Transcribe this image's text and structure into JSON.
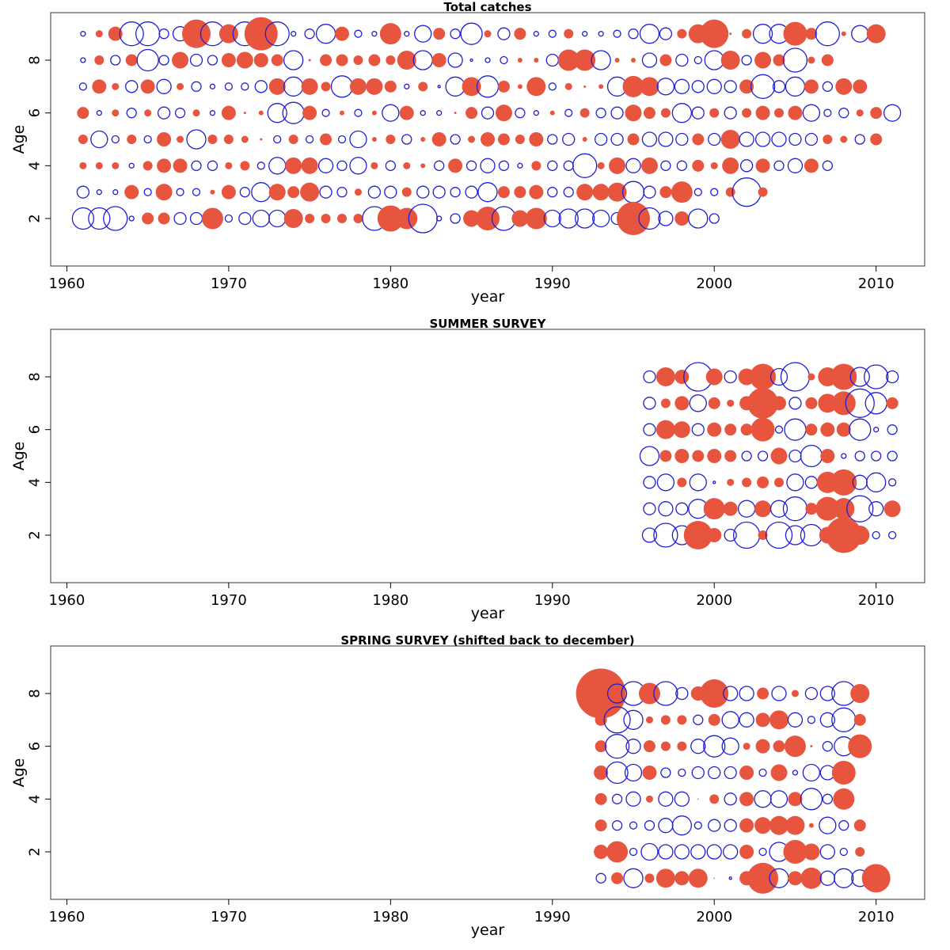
{
  "colors": {
    "positive": "#e8553f",
    "negative": "#1f1fd6",
    "axis": "#000000",
    "frame": "#333333"
  },
  "chart_data": [
    {
      "type": "scatter",
      "subtype": "bubble",
      "title": "Total catches",
      "xlabel": "year",
      "ylabel": "Age",
      "xlim": [
        1959,
        2013
      ],
      "ylim": [
        0.2,
        9.8
      ],
      "xticks": [
        1960,
        1970,
        1980,
        1990,
        2000,
        2010
      ],
      "yticks": [
        2,
        4,
        6,
        8
      ],
      "x_start": 1961,
      "ages": [
        9,
        8,
        7,
        6,
        5,
        4,
        3,
        2
      ],
      "encoding": "signed residual; + filled red, - open blue; radius ~ |value|",
      "values": [
        [
          -0.2,
          0.3,
          0.6,
          -1.0,
          -1.0,
          -0.4,
          -0.6,
          1.2,
          -1.0,
          0.8,
          -1.0,
          1.4,
          -1.0,
          -0.2,
          -0.4,
          -0.8,
          0.6,
          -0.3,
          -0.2,
          0.9,
          -0.2,
          -0.7,
          0.5,
          -0.4,
          -0.9,
          0.3,
          -0.5,
          0.5,
          -0.2,
          -0.3,
          0.4,
          -0.2,
          -0.2,
          -0.3,
          -0.4,
          -0.8,
          -0.5,
          0.4,
          0.8,
          1.2,
          0.1,
          0.4,
          -0.8,
          -0.8,
          1.0,
          0.5,
          -1.0,
          0.2,
          -0.7,
          0.8
        ],
        [
          -0.2,
          0.4,
          -0.4,
          0.5,
          -0.9,
          -0.4,
          0.7,
          -0.5,
          -0.4,
          0.6,
          0.7,
          0.6,
          0.5,
          -0.8,
          0.1,
          0.5,
          0.5,
          0.4,
          0.5,
          0.4,
          0.8,
          -0.8,
          0.6,
          -0.6,
          -0.1,
          -0.2,
          -0.3,
          0.2,
          0.2,
          -0.5,
          0.9,
          0.9,
          -0.8,
          0.2,
          0.2,
          -0.6,
          0.5,
          -0.5,
          -0.3,
          -0.8,
          0.8,
          -0.4,
          0.7,
          0.5,
          -1.0,
          0.3,
          0.5
        ],
        [
          -0.3,
          0.6,
          0.3,
          -0.5,
          0.6,
          -0.6,
          0.3,
          -0.4,
          -0.2,
          -0.3,
          -0.3,
          -0.5,
          0.7,
          -0.8,
          0.7,
          0.4,
          -0.9,
          0.7,
          0.7,
          0.5,
          -0.2,
          0.4,
          -0.1,
          -0.8,
          0.8,
          -0.9,
          0.5,
          0.2,
          0.8,
          -0.3,
          0.3,
          0.1,
          0.2,
          -0.8,
          0.9,
          0.8,
          -0.7,
          -0.6,
          -0.5,
          -0.6,
          -0.5,
          0.6,
          -1.0,
          -0.5,
          -0.8,
          0.6,
          -0.4,
          0.7,
          0.6
        ],
        [
          0.5,
          -0.2,
          0.3,
          -0.4,
          0.3,
          -0.5,
          -0.4,
          0.3,
          -0.2,
          0.6,
          0.1,
          0.2,
          -0.8,
          -0.9,
          0.6,
          -0.3,
          0.2,
          -0.3,
          0.2,
          -0.7,
          0.6,
          -0.2,
          -0.2,
          0.1,
          0.5,
          -0.5,
          0.7,
          -0.4,
          -0.2,
          0.2,
          -0.3,
          0.4,
          -0.4,
          -0.5,
          0.7,
          0.5,
          0.4,
          -0.8,
          -0.5,
          0.4,
          -0.5,
          0.4,
          0.6,
          0.4,
          0.6,
          -0.7,
          -0.3,
          -0.4,
          0.3,
          0.5,
          -0.7
        ],
        [
          0.4,
          -0.7,
          -0.3,
          0.4,
          -0.3,
          0.6,
          0.3,
          -0.8,
          0.4,
          0.4,
          0.3,
          0.1,
          -0.3,
          0.4,
          -0.3,
          0.5,
          -0.3,
          -0.7,
          0.2,
          0.4,
          -0.4,
          0.2,
          0.6,
          -0.4,
          0.3,
          0.6,
          0.5,
          0.4,
          0.6,
          -0.4,
          -0.5,
          0.2,
          -0.5,
          -0.5,
          0.5,
          -0.6,
          -0.6,
          -0.5,
          0.5,
          -0.5,
          0.8,
          -0.6,
          -0.6,
          -0.6,
          -0.5,
          -0.5,
          0.4,
          0.3,
          -0.4,
          0.5
        ],
        [
          0.3,
          0.3,
          0.3,
          -0.2,
          0.4,
          0.6,
          0.6,
          -0.4,
          -0.4,
          0.3,
          0.4,
          -0.3,
          -0.7,
          0.7,
          0.7,
          -0.6,
          -0.4,
          -0.7,
          0.3,
          -0.4,
          0.3,
          0.2,
          -0.4,
          0.6,
          -0.4,
          -0.6,
          -0.4,
          -0.2,
          0.4,
          -0.4,
          -0.4,
          -1.0,
          0.3,
          0.7,
          -0.6,
          0.7,
          -0.4,
          -0.4,
          0.5,
          0.3,
          0.7,
          -0.5,
          0.6,
          -0.4,
          -0.6,
          0.6,
          -0.4
        ],
        [
          -0.5,
          -0.2,
          -0.2,
          0.6,
          -0.3,
          0.7,
          -0.3,
          -0.3,
          0.2,
          0.6,
          -0.4,
          -0.8,
          0.7,
          0.5,
          0.8,
          -0.5,
          -0.4,
          0.3,
          -0.5,
          -0.5,
          0.4,
          -0.5,
          -0.5,
          -0.4,
          -0.5,
          -0.8,
          0.5,
          0.5,
          0.6,
          -0.4,
          -0.4,
          0.7,
          0.7,
          0.8,
          -0.9,
          -0.5,
          0.5,
          0.9,
          -0.3,
          -0.3,
          0.4,
          -1.2,
          0.4
        ],
        [
          -0.9,
          -0.9,
          -1.0,
          -0.2,
          0.5,
          0.5,
          -0.5,
          -0.5,
          0.9,
          -0.3,
          -0.5,
          -0.7,
          -0.7,
          0.8,
          0.4,
          0.4,
          0.4,
          0.4,
          -1.0,
          1.1,
          0.9,
          -1.2,
          -0.2,
          -0.4,
          0.7,
          1.0,
          -1.0,
          0.7,
          0.9,
          -0.7,
          -0.8,
          -0.8,
          -0.7,
          -0.5,
          1.4,
          -0.9,
          -0.6,
          0.6,
          -0.8,
          -0.4
        ]
      ]
    },
    {
      "type": "scatter",
      "subtype": "bubble",
      "title": "SUMMER SURVEY",
      "xlabel": "year",
      "ylabel": "Age",
      "xlim": [
        1959,
        2013
      ],
      "ylim": [
        0.2,
        9.8
      ],
      "xticks": [
        1960,
        1970,
        1980,
        1990,
        2000,
        2010
      ],
      "yticks": [
        2,
        4,
        6,
        8
      ],
      "x_start": 1996,
      "ages": [
        8,
        7,
        6,
        5,
        4,
        3,
        2
      ],
      "encoding": "signed residual; + filled red, - open blue; radius ~ |value|",
      "values": [
        [
          -0.5,
          0.8,
          0.6,
          -1.2,
          0.7,
          -0.5,
          0.7,
          1.1,
          -0.7,
          -1.2,
          0.3,
          0.8,
          1.1,
          -0.8,
          -1.0,
          -0.5
        ],
        [
          -0.5,
          0.4,
          0.6,
          -0.7,
          0.5,
          0.3,
          0.6,
          1.3,
          0.6,
          -0.5,
          0.5,
          0.8,
          1.0,
          -1.2,
          -0.9,
          0.5
        ],
        [
          -0.5,
          0.8,
          0.7,
          -0.5,
          0.6,
          0.5,
          0.5,
          1.0,
          -0.3,
          -0.9,
          0.5,
          0.6,
          0.6,
          -0.9,
          -0.2,
          -0.4
        ],
        [
          -0.8,
          0.5,
          0.6,
          0.5,
          0.6,
          0.5,
          -0.4,
          -0.4,
          0.7,
          -0.5,
          -0.9,
          0.6,
          -0.2,
          -0.4,
          -0.4,
          -0.4
        ],
        [
          -0.5,
          -0.7,
          0.4,
          -0.7,
          -0.1,
          0.3,
          0.4,
          0.5,
          0.4,
          -0.7,
          -0.5,
          0.9,
          1.1,
          -0.6,
          -0.8,
          -0.3
        ],
        [
          -0.5,
          -0.6,
          -0.5,
          -0.8,
          0.9,
          0.6,
          -0.7,
          0.7,
          -0.7,
          -1.0,
          0.5,
          1.0,
          0.9,
          -1.1,
          -0.6,
          0.7
        ],
        [
          -0.6,
          -1.0,
          -0.8,
          1.2,
          0.6,
          -0.5,
          -1.1,
          0.4,
          -1.1,
          -0.8,
          -0.9,
          0.7,
          1.5,
          0.8,
          -0.3,
          -0.3
        ]
      ]
    },
    {
      "type": "scatter",
      "subtype": "bubble",
      "title": "SPRING SURVEY (shifted back to december)",
      "xlabel": "year",
      "ylabel": "Age",
      "xlim": [
        1959,
        2013
      ],
      "ylim": [
        0.2,
        9.8
      ],
      "xticks": [
        1960,
        1970,
        1980,
        1990,
        2000,
        2010
      ],
      "yticks": [
        2,
        4,
        6,
        8
      ],
      "x_start": 1993,
      "ages": [
        8,
        7,
        6,
        5,
        4,
        3,
        2,
        1
      ],
      "encoding": "signed residual; + filled red, - open blue; radius ~ |value|",
      "values": [
        [
          2.1,
          -0.8,
          -1.0,
          0.9,
          -1.0,
          -0.5,
          0.6,
          1.2,
          -0.6,
          -0.6,
          0.5,
          -0.6,
          0.3,
          -0.5,
          -0.6,
          -1.0,
          0.8
        ],
        [
          0.5,
          -1.1,
          -0.8,
          0.3,
          0.4,
          0.4,
          -0.4,
          0.5,
          -0.7,
          -0.6,
          0.6,
          0.8,
          -0.6,
          -0.3,
          -0.6,
          -1.0,
          0.5
        ],
        [
          0.5,
          -1.0,
          -0.6,
          0.5,
          0.4,
          0.4,
          -0.6,
          -0.9,
          -0.7,
          0.3,
          0.6,
          0.5,
          0.9,
          0.1,
          -0.4,
          -0.8,
          1.0
        ],
        [
          0.6,
          -0.9,
          -0.7,
          0.6,
          -0.4,
          -0.3,
          -0.5,
          -0.5,
          -0.5,
          0.6,
          -0.3,
          0.7,
          -0.2,
          -0.7,
          -0.6,
          1.0
        ],
        [
          0.5,
          -0.4,
          -0.6,
          0.3,
          -0.6,
          -0.6,
          0.0,
          0.4,
          -0.5,
          0.6,
          -0.7,
          -0.7,
          0.6,
          -0.9,
          -0.4,
          0.9
        ],
        [
          0.5,
          -0.4,
          -0.3,
          -0.4,
          -0.6,
          -0.8,
          -0.3,
          -0.5,
          -0.5,
          0.6,
          0.7,
          0.8,
          0.8,
          0.2,
          -0.7,
          -0.4,
          0.5
        ],
        [
          0.6,
          0.9,
          -0.3,
          -0.7,
          -0.6,
          -0.6,
          -0.6,
          -0.6,
          -0.6,
          0.6,
          -0.3,
          -0.8,
          1.0,
          0.7,
          -0.6,
          -0.3,
          0.4
        ],
        [
          -0.4,
          0.5,
          -0.8,
          0.4,
          0.8,
          0.6,
          0.8,
          0.0,
          -0.1,
          0.6,
          1.3,
          -0.8,
          0.6,
          0.9,
          -0.6,
          -0.8,
          -0.7,
          1.2
        ]
      ]
    }
  ]
}
